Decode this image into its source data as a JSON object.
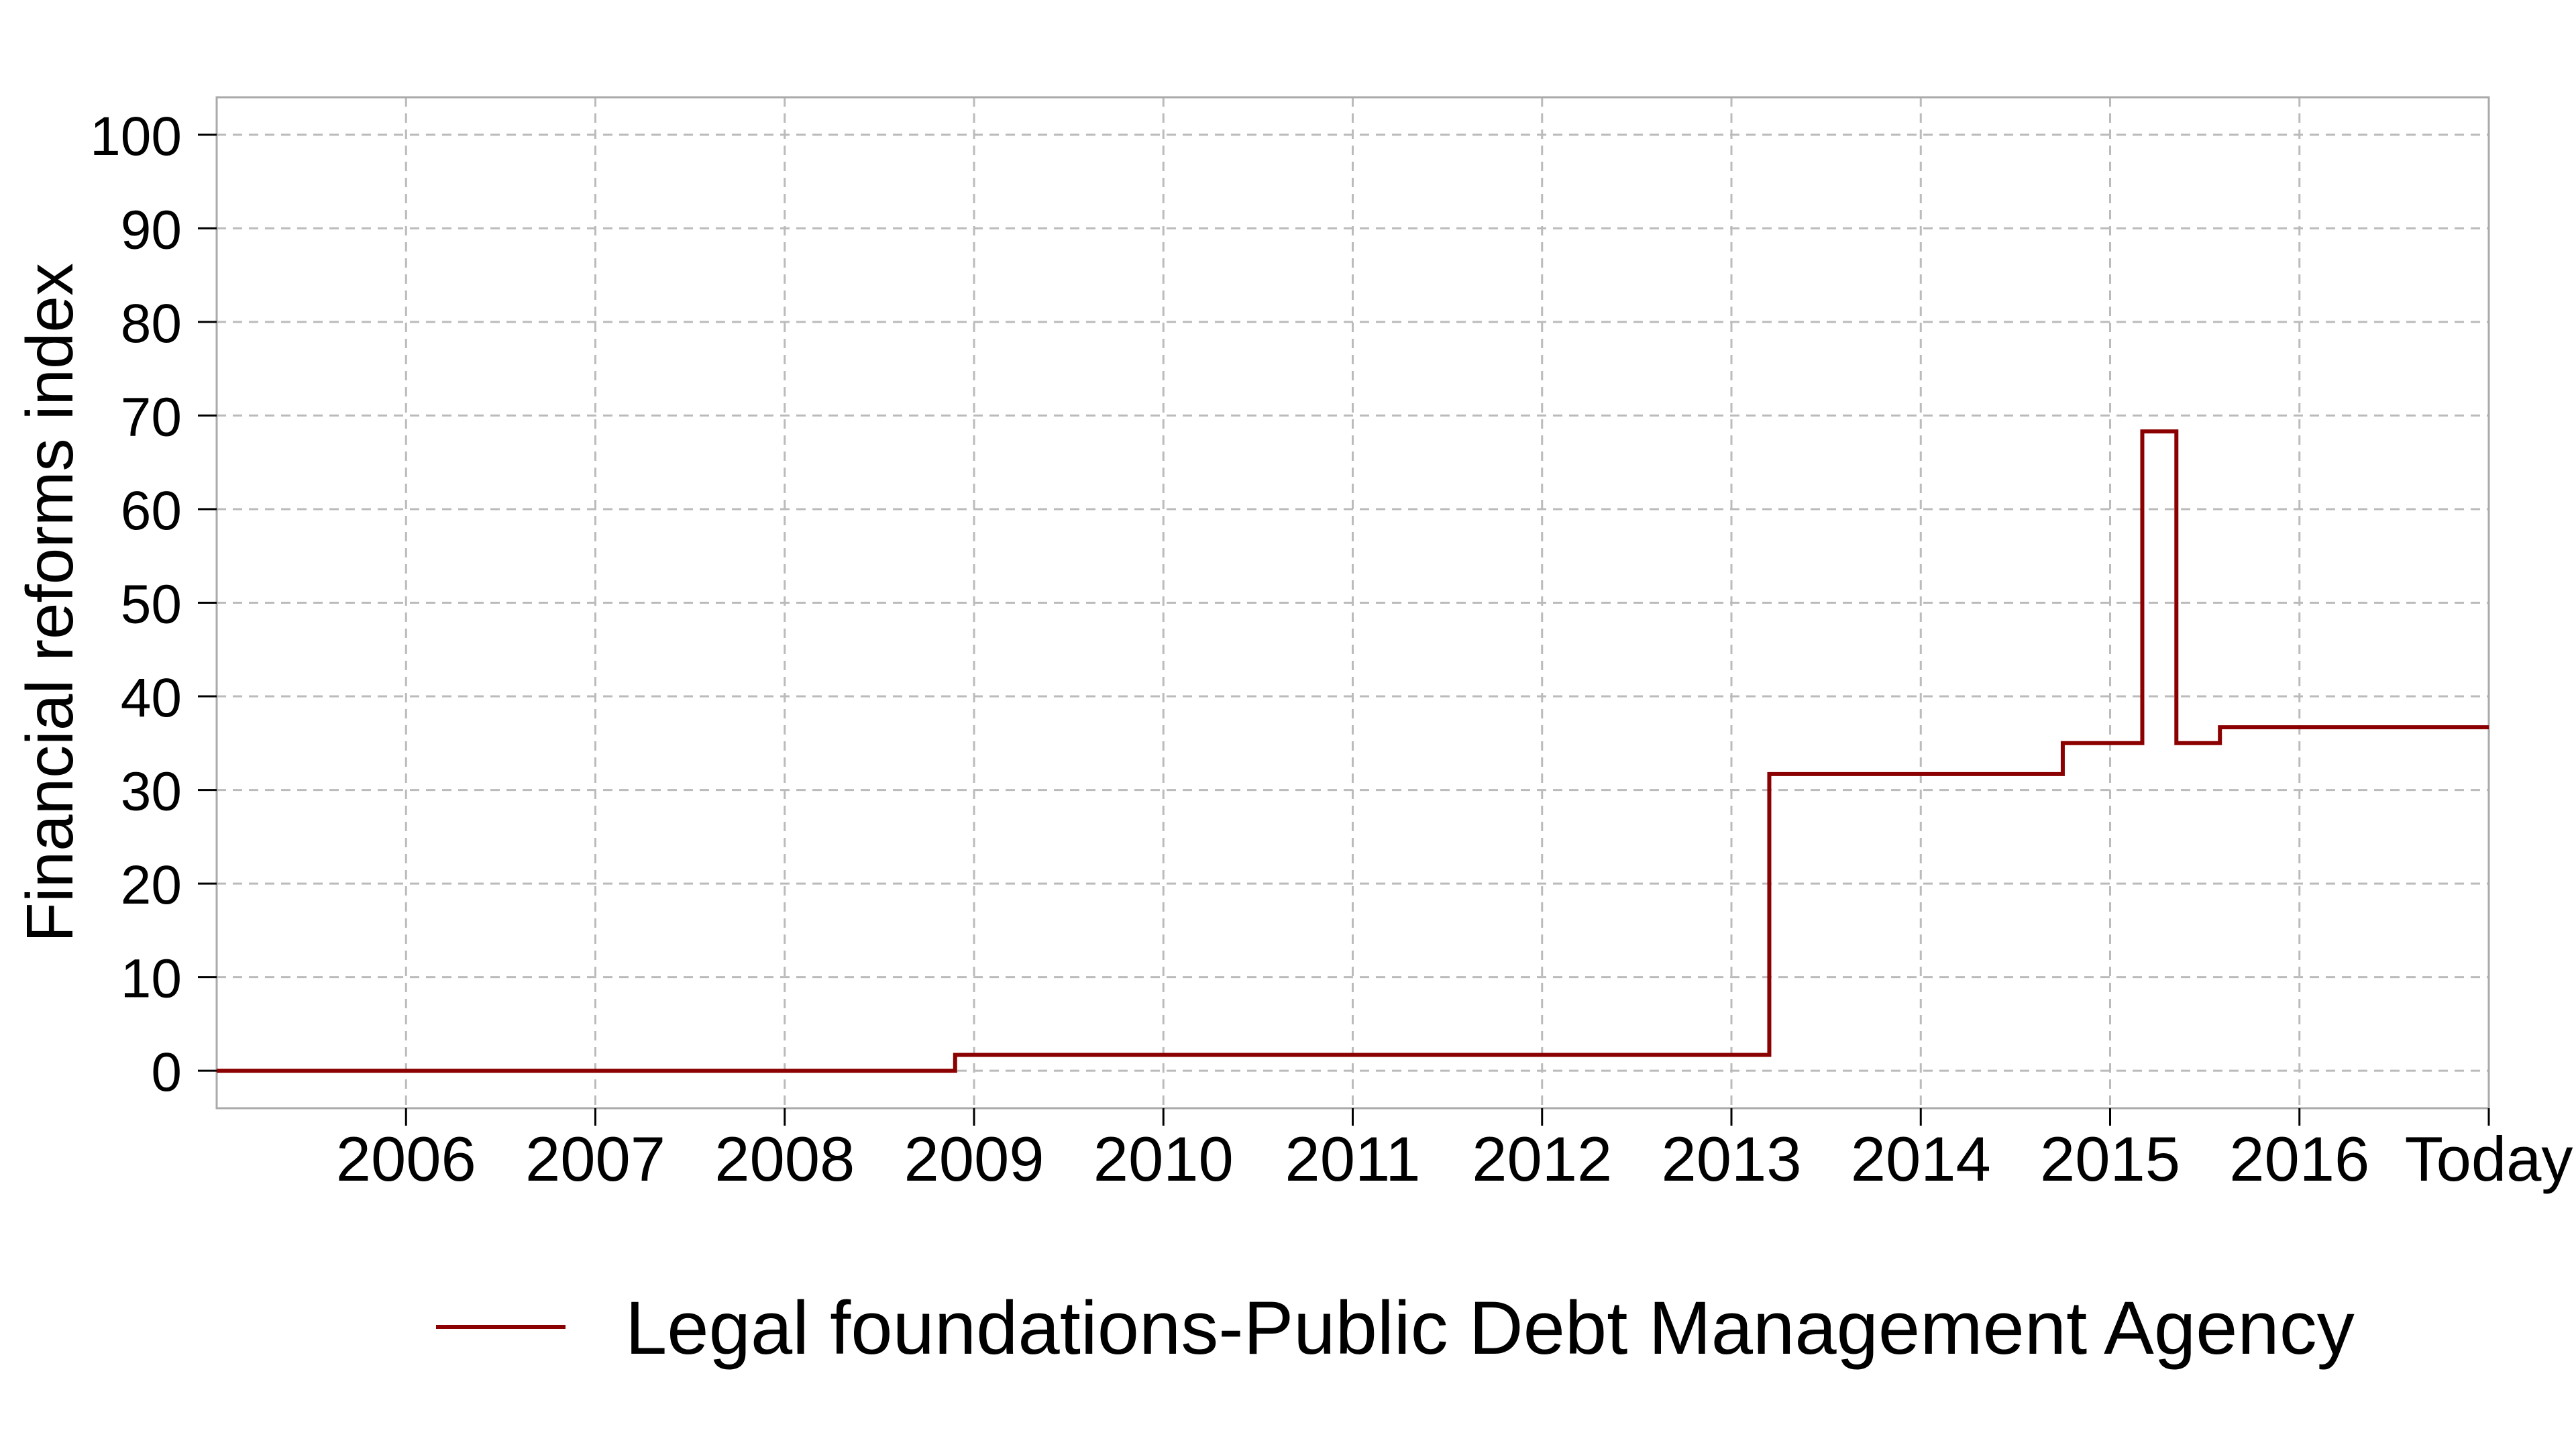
{
  "chart_data": {
    "type": "line",
    "step": true,
    "title": "",
    "xlabel": "",
    "ylabel": "Financial reforms index",
    "xlim": [
      2005.0,
      2017.0
    ],
    "ylim": [
      -4,
      104
    ],
    "x_ticks": [
      {
        "value": 2006,
        "label": "2006"
      },
      {
        "value": 2007,
        "label": "2007"
      },
      {
        "value": 2008,
        "label": "2008"
      },
      {
        "value": 2009,
        "label": "2009"
      },
      {
        "value": 2010,
        "label": "2010"
      },
      {
        "value": 2011,
        "label": "2011"
      },
      {
        "value": 2012,
        "label": "2012"
      },
      {
        "value": 2013,
        "label": "2013"
      },
      {
        "value": 2014,
        "label": "2014"
      },
      {
        "value": 2015,
        "label": "2015"
      },
      {
        "value": 2016,
        "label": "2016"
      },
      {
        "value": 2017,
        "label": "Today"
      }
    ],
    "y_ticks": [
      0,
      10,
      20,
      30,
      40,
      50,
      60,
      70,
      80,
      90,
      100
    ],
    "grid": true,
    "legend_position": "bottom-center",
    "series": [
      {
        "name": "Legal foundations-Public Debt Management Agency",
        "color": "#8b0000",
        "x": [
          2005.0,
          2008.9,
          2013.2,
          2014.75,
          2015.17,
          2015.35,
          2015.58,
          2017.0
        ],
        "y": [
          0,
          1.7,
          31.7,
          35.0,
          68.3,
          35.0,
          36.7,
          36.7
        ]
      }
    ]
  }
}
